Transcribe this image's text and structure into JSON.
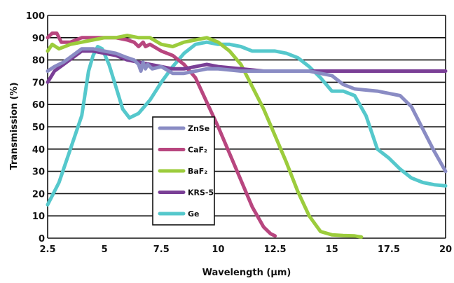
{
  "chart_data": {
    "type": "line",
    "title": "",
    "xlabel": "Wavelength (μm)",
    "ylabel": "Transmission (%)",
    "xlim": [
      2.5,
      20
    ],
    "ylim": [
      0,
      100
    ],
    "x_ticks": [
      "2.5",
      "5",
      "7.5",
      "10",
      "12.5",
      "15",
      "17.5",
      "20"
    ],
    "y_ticks": [
      "0",
      "10",
      "20",
      "30",
      "40",
      "50",
      "60",
      "70",
      "80",
      "90",
      "100"
    ],
    "grid": "horizontal",
    "legend_position": "center",
    "series": [
      {
        "name": "ZnSe",
        "color": "#8a8cc4",
        "points": [
          [
            2.5,
            75
          ],
          [
            2.8,
            77
          ],
          [
            3.2,
            79
          ],
          [
            3.6,
            82
          ],
          [
            4.0,
            85
          ],
          [
            4.5,
            85
          ],
          [
            5.0,
            84
          ],
          [
            5.5,
            83
          ],
          [
            6.0,
            81
          ],
          [
            6.3,
            80
          ],
          [
            6.5,
            78
          ],
          [
            6.6,
            75
          ],
          [
            6.7,
            79
          ],
          [
            6.8,
            76
          ],
          [
            6.9,
            78
          ],
          [
            7.1,
            76
          ],
          [
            7.5,
            77
          ],
          [
            8.0,
            74
          ],
          [
            8.5,
            74
          ],
          [
            9.0,
            75
          ],
          [
            9.5,
            76
          ],
          [
            10.0,
            76
          ],
          [
            11.0,
            75
          ],
          [
            12.0,
            75
          ],
          [
            14.0,
            75
          ],
          [
            15.0,
            73
          ],
          [
            15.5,
            69
          ],
          [
            16.0,
            67
          ],
          [
            17.0,
            66
          ],
          [
            17.5,
            65
          ],
          [
            18.0,
            64
          ],
          [
            18.5,
            59
          ],
          [
            19.0,
            49
          ],
          [
            19.5,
            39
          ],
          [
            20.0,
            30
          ]
        ]
      },
      {
        "name": "CaF₂",
        "color": "#b8467f",
        "points": [
          [
            2.5,
            90
          ],
          [
            2.7,
            92
          ],
          [
            2.9,
            92
          ],
          [
            3.1,
            88
          ],
          [
            3.5,
            88
          ],
          [
            4.0,
            90
          ],
          [
            4.5,
            90
          ],
          [
            5.0,
            90
          ],
          [
            5.5,
            90
          ],
          [
            6.0,
            89
          ],
          [
            6.3,
            88
          ],
          [
            6.5,
            86
          ],
          [
            6.7,
            88
          ],
          [
            6.8,
            86
          ],
          [
            7.0,
            87
          ],
          [
            7.5,
            84
          ],
          [
            8.0,
            82
          ],
          [
            8.5,
            78
          ],
          [
            9.0,
            72
          ],
          [
            9.5,
            61
          ],
          [
            10.0,
            50
          ],
          [
            10.5,
            38
          ],
          [
            11.0,
            26
          ],
          [
            11.5,
            14
          ],
          [
            12.0,
            5
          ],
          [
            12.3,
            2
          ],
          [
            12.5,
            1
          ]
        ]
      },
      {
        "name": "BaF₂",
        "color": "#9ccc3c",
        "points": [
          [
            2.5,
            84
          ],
          [
            2.7,
            87
          ],
          [
            3.0,
            85
          ],
          [
            3.5,
            87
          ],
          [
            4.0,
            88
          ],
          [
            4.5,
            89
          ],
          [
            5.0,
            90
          ],
          [
            5.5,
            90
          ],
          [
            6.0,
            91
          ],
          [
            6.5,
            90
          ],
          [
            7.0,
            90
          ],
          [
            7.5,
            87
          ],
          [
            8.0,
            86
          ],
          [
            8.5,
            88
          ],
          [
            9.0,
            89
          ],
          [
            9.5,
            90
          ],
          [
            10.0,
            88
          ],
          [
            10.5,
            84
          ],
          [
            11.0,
            78
          ],
          [
            11.5,
            68
          ],
          [
            12.0,
            58
          ],
          [
            12.5,
            46
          ],
          [
            13.0,
            34
          ],
          [
            13.5,
            21
          ],
          [
            14.0,
            10
          ],
          [
            14.5,
            3
          ],
          [
            15.0,
            1.5
          ],
          [
            15.5,
            1.2
          ],
          [
            16.0,
            1
          ],
          [
            16.3,
            0.5
          ]
        ]
      },
      {
        "name": "KRS-5",
        "color": "#7a3f96",
        "points": [
          [
            2.5,
            70
          ],
          [
            2.8,
            75
          ],
          [
            3.2,
            78
          ],
          [
            3.6,
            81
          ],
          [
            4.0,
            84
          ],
          [
            4.5,
            84
          ],
          [
            5.0,
            83
          ],
          [
            5.5,
            82
          ],
          [
            6.0,
            80
          ],
          [
            6.5,
            79
          ],
          [
            7.0,
            78
          ],
          [
            7.5,
            77
          ],
          [
            8.0,
            76
          ],
          [
            8.5,
            76
          ],
          [
            9.0,
            77
          ],
          [
            9.5,
            78
          ],
          [
            10.0,
            77
          ],
          [
            11.0,
            76
          ],
          [
            12.0,
            75
          ],
          [
            14.0,
            75
          ],
          [
            16.0,
            75
          ],
          [
            18.0,
            75
          ],
          [
            20.0,
            75
          ]
        ]
      },
      {
        "name": "Ge",
        "color": "#55c8cc",
        "points": [
          [
            2.5,
            15
          ],
          [
            3.0,
            25
          ],
          [
            3.5,
            40
          ],
          [
            4.0,
            55
          ],
          [
            4.3,
            75
          ],
          [
            4.5,
            82
          ],
          [
            4.7,
            86
          ],
          [
            4.9,
            85
          ],
          [
            5.2,
            78
          ],
          [
            5.5,
            68
          ],
          [
            5.8,
            58
          ],
          [
            6.1,
            54
          ],
          [
            6.5,
            56
          ],
          [
            7.0,
            62
          ],
          [
            7.5,
            70
          ],
          [
            8.0,
            77
          ],
          [
            8.5,
            83
          ],
          [
            9.0,
            87
          ],
          [
            9.5,
            88
          ],
          [
            10.0,
            87
          ],
          [
            10.5,
            87
          ],
          [
            11.0,
            86
          ],
          [
            11.5,
            84
          ],
          [
            12.0,
            84
          ],
          [
            12.5,
            84
          ],
          [
            13.0,
            83
          ],
          [
            13.5,
            81
          ],
          [
            14.0,
            77
          ],
          [
            14.5,
            72
          ],
          [
            15.0,
            66
          ],
          [
            15.5,
            66
          ],
          [
            16.0,
            64
          ],
          [
            16.5,
            55
          ],
          [
            17.0,
            40
          ],
          [
            17.5,
            36
          ],
          [
            18.0,
            31
          ],
          [
            18.5,
            27
          ],
          [
            19.0,
            25
          ],
          [
            19.5,
            24
          ],
          [
            20.0,
            23.5
          ]
        ]
      }
    ]
  }
}
